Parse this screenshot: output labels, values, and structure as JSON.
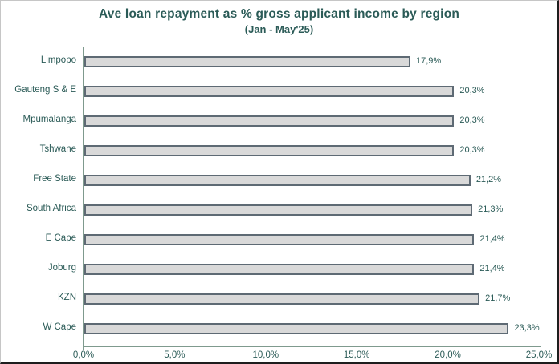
{
  "chart_data": {
    "type": "bar",
    "orientation": "horizontal",
    "title": "Ave loan repayment as % gross applicant income by region",
    "subtitle": "(Jan - May'25)",
    "categories": [
      "Limpopo",
      "Gauteng S & E",
      "Mpumalanga",
      "Tshwane",
      "Free State",
      "South Africa",
      "E Cape",
      "Joburg",
      "KZN",
      "W Cape"
    ],
    "values": [
      17.9,
      20.3,
      20.3,
      20.3,
      21.2,
      21.3,
      21.4,
      21.4,
      21.7,
      23.3
    ],
    "value_labels": [
      "17,9%",
      "20,3%",
      "20,3%",
      "20,3%",
      "21,2%",
      "21,3%",
      "21,4%",
      "21,4%",
      "21,7%",
      "23,3%"
    ],
    "xlim": [
      0,
      25
    ],
    "x_ticks": [
      {
        "value": 0,
        "label": "0,0%"
      },
      {
        "value": 5,
        "label": "5,0%"
      },
      {
        "value": 10,
        "label": "10,0%"
      },
      {
        "value": 15,
        "label": "15,0%"
      },
      {
        "value": 20,
        "label": "20,0%"
      },
      {
        "value": 25,
        "label": "25,0%"
      }
    ],
    "xlabel": "",
    "ylabel": "",
    "grid": false,
    "legend": false
  },
  "colors": {
    "title_text": "#2b5b57",
    "axis_text": "#2b5b57",
    "axis_line": "#7f9a8e",
    "bar_fill": "#d9d9d9",
    "bar_border": "#5e6a74",
    "background": "#ffffff"
  }
}
